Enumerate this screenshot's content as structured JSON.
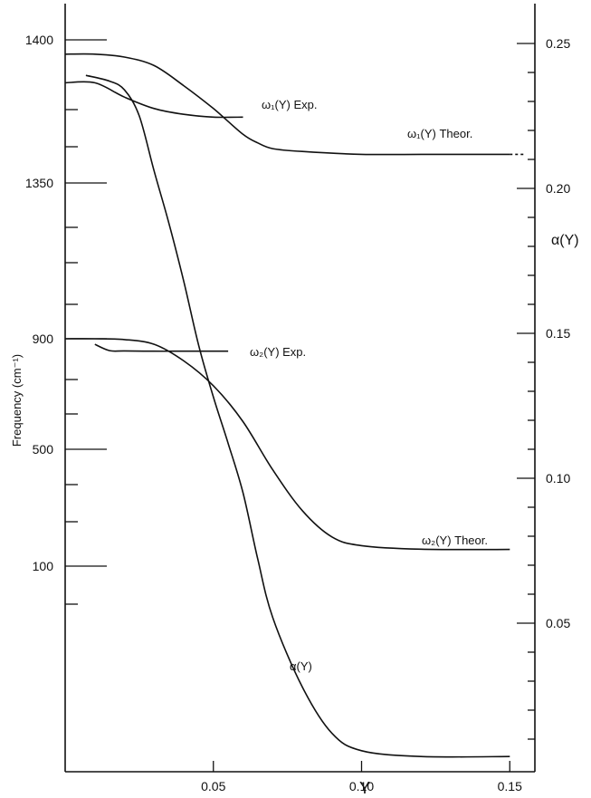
{
  "chart_data": {
    "type": "line",
    "title": "",
    "xlabel": "Y",
    "ylabel_left": "Frequency (cm⁻¹)",
    "ylabel_right": "α(Y)",
    "xlim": [
      0.0,
      0.16
    ],
    "x_ticks": [
      "0.05",
      "0.10",
      "0.15"
    ],
    "left_ticks": [
      "1400",
      "1350",
      "900",
      "500",
      "100"
    ],
    "right_ticks": [
      "0.25",
      "0.20",
      "0.15",
      "0.10",
      "0.05"
    ],
    "right_ylim": [
      0.0,
      0.26
    ],
    "grid": false,
    "series": [
      {
        "name": "ω₁(Y) Theor.",
        "axis": "left",
        "x": [
          0.0,
          0.01,
          0.02,
          0.03,
          0.04,
          0.05,
          0.06,
          0.065,
          0.07,
          0.08,
          0.1,
          0.12,
          0.15
        ],
        "y": [
          1395,
          1395,
          1394,
          1391,
          1384,
          1376,
          1367,
          1364,
          1362,
          1361,
          1360,
          1360,
          1360
        ]
      },
      {
        "name": "ω₁(Y) Exp.",
        "axis": "left",
        "x": [
          0.0,
          0.01,
          0.02,
          0.03,
          0.04,
          0.05,
          0.06
        ],
        "y": [
          1385,
          1385,
          1380,
          1376,
          1374,
          1373,
          1373
        ]
      },
      {
        "name": "ω₂(Y) Theor.",
        "axis": "left",
        "x": [
          0.0,
          0.01,
          0.02,
          0.03,
          0.04,
          0.05,
          0.06,
          0.07,
          0.08,
          0.09,
          0.1,
          0.12,
          0.15
        ],
        "y": [
          900,
          900,
          897,
          880,
          820,
          730,
          600,
          430,
          290,
          200,
          170,
          158,
          157
        ]
      },
      {
        "name": "ω₂(Y) Exp.",
        "axis": "left",
        "x": [
          0.01,
          0.015,
          0.02,
          0.03,
          0.04,
          0.05,
          0.055
        ],
        "y": [
          880,
          857,
          856,
          855,
          855,
          855,
          855
        ]
      },
      {
        "name": "α(Y)",
        "axis": "right",
        "x": [
          0.007,
          0.015,
          0.02,
          0.025,
          0.03,
          0.035,
          0.04,
          0.045,
          0.05,
          0.055,
          0.06,
          0.065,
          0.07,
          0.08,
          0.09,
          0.1,
          0.12,
          0.15
        ],
        "y": [
          0.239,
          0.237,
          0.234,
          0.225,
          0.206,
          0.188,
          0.168,
          0.146,
          0.128,
          0.112,
          0.095,
          0.072,
          0.052,
          0.028,
          0.012,
          0.006,
          0.004,
          0.004
        ]
      }
    ],
    "annotations": [
      {
        "text": "ω₁(Y) Exp.",
        "series": 1
      },
      {
        "text": "ω₁(Y) Theor.",
        "series": 0
      },
      {
        "text": "ω₂(Y) Exp.",
        "series": 3
      },
      {
        "text": "ω₂(Y) Theor.",
        "series": 2
      },
      {
        "text": "α(Y)",
        "series": 4
      }
    ]
  }
}
